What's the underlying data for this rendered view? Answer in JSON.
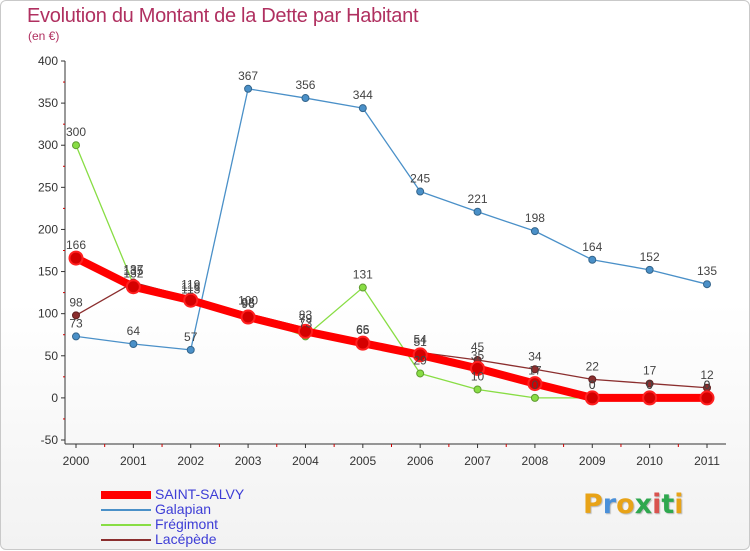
{
  "header": {
    "title": "Evolution du Montant de la Dette par Habitant",
    "subtitle": "(en €)"
  },
  "logo": {
    "text": "Proxiti",
    "colors": [
      "#e8a317",
      "#4a90d9",
      "#e8a317",
      "#2fa84f",
      "#d9534f",
      "#2fa84f",
      "#e8a317"
    ]
  },
  "chart_data": {
    "type": "line",
    "title": "Evolution du Montant de la Dette par Habitant",
    "subtitle": "(en €)",
    "xlabel": "",
    "ylabel": "",
    "categories": [
      "2000",
      "2001",
      "2002",
      "2003",
      "2004",
      "2005",
      "2006",
      "2007",
      "2008",
      "2009",
      "2010",
      "2011"
    ],
    "ylim": [
      -50,
      400
    ],
    "yticks": [
      -50,
      0,
      50,
      100,
      150,
      200,
      250,
      300,
      350,
      400
    ],
    "grid": false,
    "legend_position": "bottom-left",
    "series": [
      {
        "name": "SAINT-SALVY",
        "color": "#ff0000",
        "values": [
          166,
          132,
          116,
          96,
          79,
          65,
          51,
          35,
          17,
          0,
          0,
          0
        ],
        "labels": [
          "166",
          "132",
          "116",
          "96",
          "79",
          "65",
          "51",
          "35",
          "17",
          "0",
          "0",
          "0"
        ]
      },
      {
        "name": "Galapian",
        "color": "#4a90c8",
        "values": [
          73,
          64,
          57,
          367,
          356,
          344,
          245,
          221,
          198,
          164,
          152,
          135
        ],
        "labels": [
          "73",
          "64",
          "57",
          "367",
          "356",
          "344",
          "245",
          "221",
          "198",
          "164",
          "152",
          "135"
        ]
      },
      {
        "name": "Frégimont",
        "color": "#88dd44",
        "values": [
          300,
          135,
          113,
          98,
          73,
          131,
          29,
          10,
          0,
          0,
          0,
          0
        ],
        "labels": [
          "300",
          "135",
          "113",
          "98",
          "73",
          "131",
          "29",
          "10",
          "0",
          "0",
          "0",
          "0"
        ]
      },
      {
        "name": "Lacépède",
        "color": "#8b2e2e",
        "values": [
          98,
          137,
          119,
          100,
          83,
          66,
          54,
          45,
          34,
          22,
          17,
          12
        ],
        "labels": [
          "98",
          "137",
          "119",
          "100",
          "83",
          "66",
          "54",
          "45",
          "34",
          "22",
          "17",
          "12"
        ]
      }
    ]
  }
}
